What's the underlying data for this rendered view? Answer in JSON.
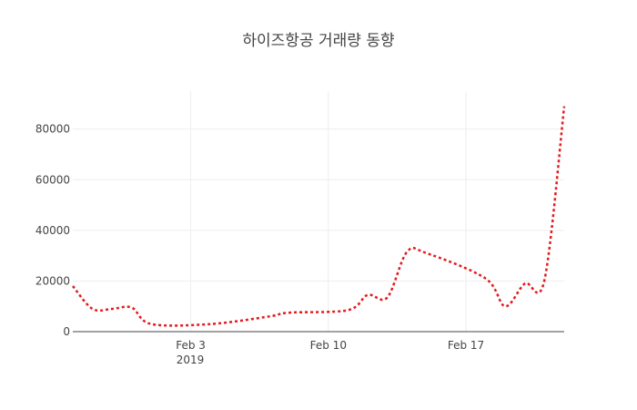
{
  "chart_data": {
    "type": "line",
    "title": "하이즈항공 거래량 동향",
    "xlabel": "",
    "ylabel": "",
    "x_year_label": "2019",
    "x": [
      "2019-01-28",
      "2019-01-29",
      "2019-01-30",
      "2019-01-31",
      "2019-02-01",
      "2019-02-04",
      "2019-02-07",
      "2019-02-08",
      "2019-02-11",
      "2019-02-12",
      "2019-02-13",
      "2019-02-14",
      "2019-02-15",
      "2019-02-18",
      "2019-02-19",
      "2019-02-20",
      "2019-02-21",
      "2019-02-22"
    ],
    "series": [
      {
        "name": "",
        "color": "#e41a1c",
        "values": [
          18000,
          9000,
          9000,
          9500,
          3000,
          3000,
          6000,
          7500,
          8500,
          14500,
          13500,
          31500,
          31000,
          21000,
          10000,
          19000,
          20500,
          89000
        ]
      }
    ],
    "xlim": [
      "2019-01-28",
      "2019-02-22"
    ],
    "ylim": [
      0,
      95000
    ],
    "x_ticks": [
      {
        "date": "2019-02-03",
        "label": "Feb 3"
      },
      {
        "date": "2019-02-10",
        "label": "Feb 10"
      },
      {
        "date": "2019-02-17",
        "label": "Feb 17"
      }
    ],
    "y_ticks": [
      0,
      20000,
      40000,
      60000,
      80000
    ],
    "grid": true,
    "line_style": "dotted"
  }
}
